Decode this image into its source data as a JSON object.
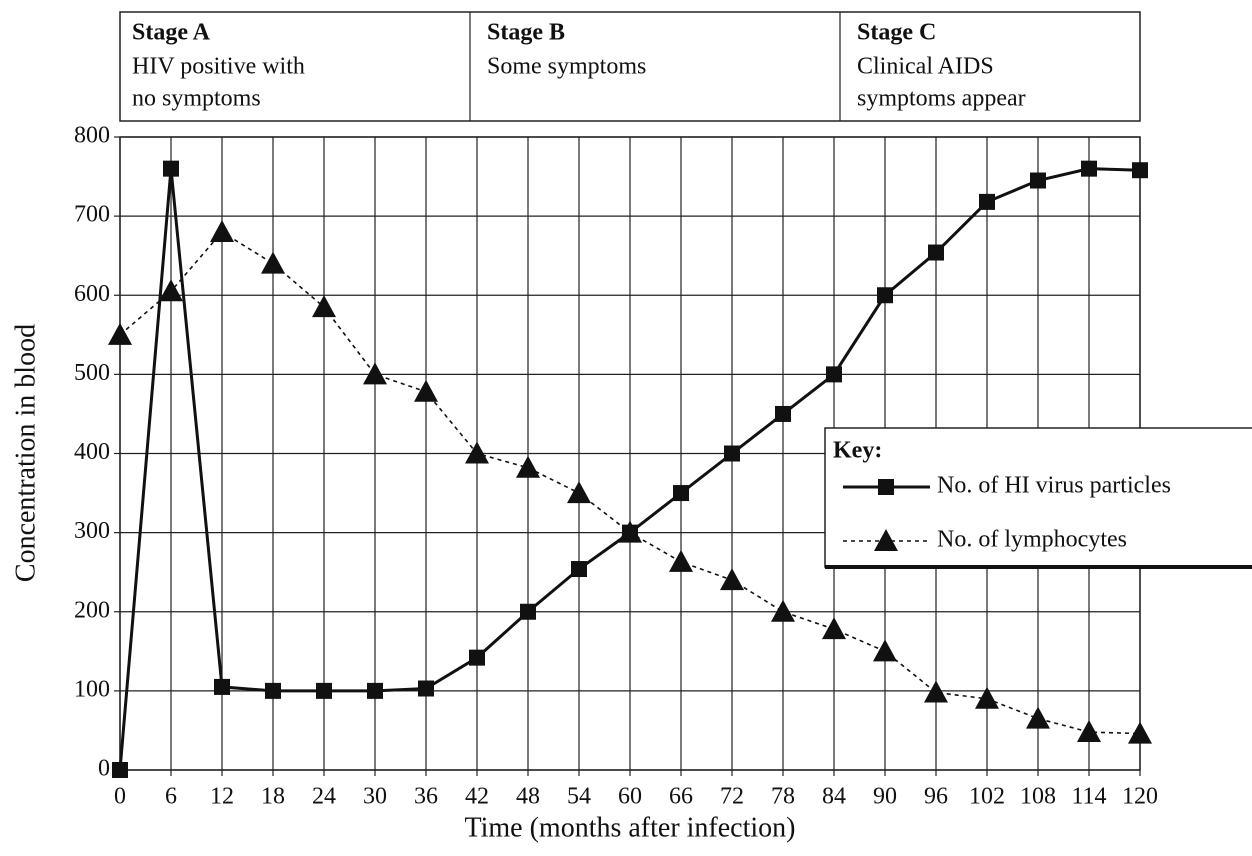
{
  "chart_data": {
    "type": "line",
    "stages": [
      {
        "name": "Stage A",
        "lines": [
          "HIV positive with",
          "no symptoms"
        ]
      },
      {
        "name": "Stage B",
        "lines": [
          "Some symptoms"
        ]
      },
      {
        "name": "Stage C",
        "lines": [
          "Clinical AIDS",
          "symptoms appear"
        ]
      }
    ],
    "x_label": "Time (months after infection)",
    "y_label": "Concentration in blood",
    "x": [
      0,
      6,
      12,
      18,
      24,
      30,
      36,
      42,
      48,
      54,
      60,
      66,
      72,
      78,
      84,
      90,
      96,
      102,
      108,
      114,
      120
    ],
    "series": [
      {
        "name": "No. of HI virus particles",
        "color": "#111111",
        "line_style": "solid",
        "marker": "square",
        "values": [
          0,
          760,
          105,
          100,
          100,
          100,
          103,
          142,
          200,
          254,
          300,
          350,
          400,
          450,
          500,
          600,
          654,
          718,
          745,
          760,
          758
        ]
      },
      {
        "name": "No. of lymphocytes",
        "color": "#111111",
        "line_style": "dashed",
        "marker": "triangle",
        "values": [
          550,
          605,
          680,
          640,
          585,
          500,
          478,
          400,
          382,
          350,
          300,
          263,
          240,
          200,
          178,
          150,
          98,
          90,
          65,
          48,
          46
        ]
      }
    ],
    "xlim": [
      0,
      120
    ],
    "xticks": [
      0,
      6,
      12,
      18,
      24,
      30,
      36,
      42,
      48,
      54,
      60,
      66,
      72,
      78,
      84,
      90,
      96,
      102,
      108,
      114,
      120
    ],
    "ylim": [
      0,
      800
    ],
    "yticks": [
      0,
      100,
      200,
      300,
      400,
      500,
      600,
      700,
      800
    ],
    "grid": true,
    "legend": {
      "title": "Key:",
      "position": "right"
    }
  }
}
